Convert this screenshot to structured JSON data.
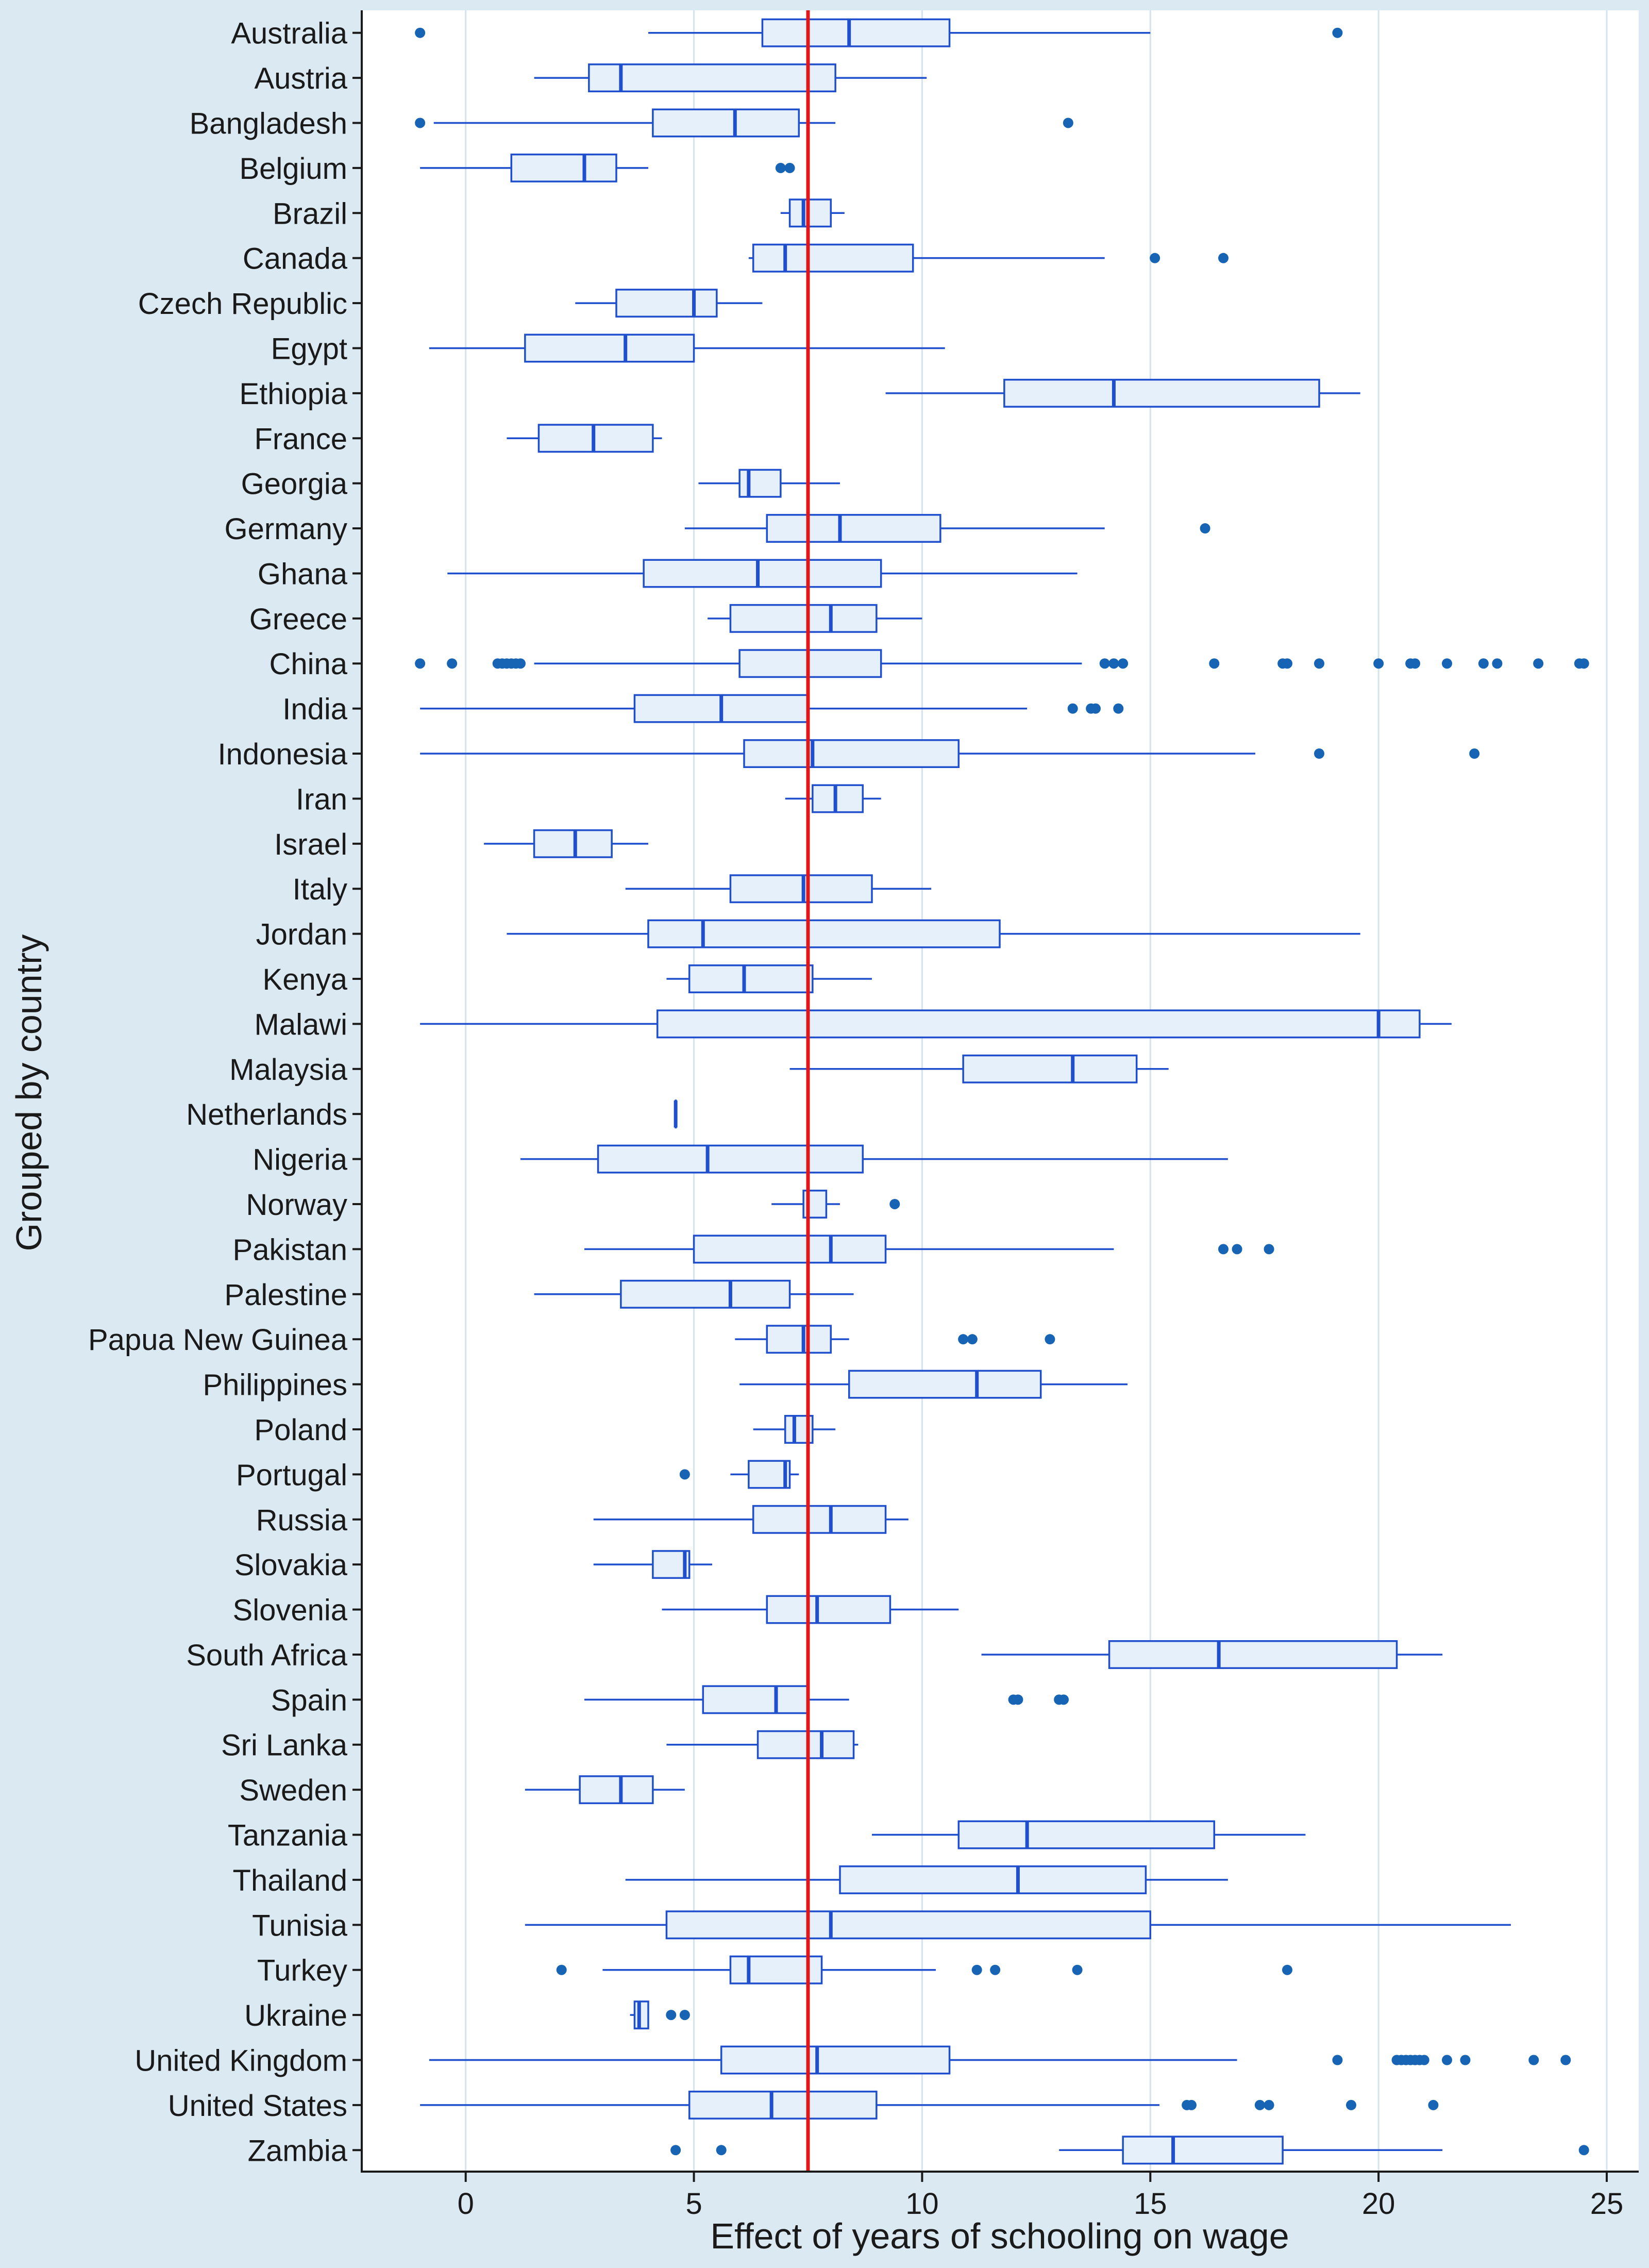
{
  "chart_data": {
    "type": "boxplot",
    "orientation": "horizontal",
    "xlabel": "Effect of years of schooling on wage",
    "ylabel": "Grouped by country",
    "xlim": [
      -2.3,
      25.7
    ],
    "x_ticks": [
      0,
      5,
      10,
      15,
      20,
      25
    ],
    "grid": "vertical",
    "reference_line": {
      "x": 7.5,
      "color": "#e0161b"
    },
    "colors": {
      "box_fill": "#e6f0fa",
      "box_stroke": "#1f4fcc",
      "outlier": "#1764b4",
      "background": "#dbeaf2",
      "plot_bg": "#ffffff",
      "grid": "#d3e3f0"
    },
    "categories": [
      "Australia",
      "Austria",
      "Bangladesh",
      "Belgium",
      "Brazil",
      "Canada",
      "Czech Republic",
      "Egypt",
      "Ethiopia",
      "France",
      "Georgia",
      "Germany",
      "Ghana",
      "Greece",
      "China",
      "India",
      "Indonesia",
      "Iran",
      "Israel",
      "Italy",
      "Jordan",
      "Kenya",
      "Malawi",
      "Malaysia",
      "Netherlands",
      "Nigeria",
      "Norway",
      "Pakistan",
      "Palestine",
      "Papua New Guinea",
      "Philippines",
      "Poland",
      "Portugal",
      "Russia",
      "Slovakia",
      "Slovenia",
      "South Africa",
      "Spain",
      "Sri Lanka",
      "Sweden",
      "Tanzania",
      "Thailand",
      "Tunisia",
      "Turkey",
      "Ukraine",
      "United Kingdom",
      "United States",
      "Zambia"
    ],
    "boxes": [
      {
        "min": 4.0,
        "q1": 6.5,
        "median": 8.4,
        "q3": 10.6,
        "max": 15.0,
        "outliers": [
          -1.0,
          19.1
        ]
      },
      {
        "min": 1.5,
        "q1": 2.7,
        "median": 3.4,
        "q3": 8.1,
        "max": 10.1,
        "outliers": []
      },
      {
        "min": -0.7,
        "q1": 4.1,
        "median": 5.9,
        "q3": 7.3,
        "max": 8.1,
        "outliers": [
          -1.0,
          13.2
        ]
      },
      {
        "min": -1.0,
        "q1": 1.0,
        "median": 2.6,
        "q3": 3.3,
        "max": 4.0,
        "outliers": [
          6.9,
          7.1
        ]
      },
      {
        "min": 6.9,
        "q1": 7.1,
        "median": 7.4,
        "q3": 8.0,
        "max": 8.3,
        "outliers": []
      },
      {
        "min": 6.2,
        "q1": 6.3,
        "median": 7.0,
        "q3": 9.8,
        "max": 14.0,
        "outliers": [
          15.1,
          16.6
        ]
      },
      {
        "min": 2.4,
        "q1": 3.3,
        "median": 5.0,
        "q3": 5.5,
        "max": 6.5,
        "outliers": []
      },
      {
        "min": -0.8,
        "q1": 1.3,
        "median": 3.5,
        "q3": 5.0,
        "max": 10.5,
        "outliers": []
      },
      {
        "min": 9.2,
        "q1": 11.8,
        "median": 14.2,
        "q3": 18.7,
        "max": 19.6,
        "outliers": []
      },
      {
        "min": 0.9,
        "q1": 1.6,
        "median": 2.8,
        "q3": 4.1,
        "max": 4.3,
        "outliers": []
      },
      {
        "min": 5.1,
        "q1": 6.0,
        "median": 6.2,
        "q3": 6.9,
        "max": 8.2,
        "outliers": []
      },
      {
        "min": 4.8,
        "q1": 6.6,
        "median": 8.2,
        "q3": 10.4,
        "max": 14.0,
        "outliers": [
          16.2
        ]
      },
      {
        "min": -0.4,
        "q1": 3.9,
        "median": 6.4,
        "q3": 9.1,
        "max": 13.4,
        "outliers": []
      },
      {
        "min": 5.3,
        "q1": 5.8,
        "median": 8.0,
        "q3": 9.0,
        "max": 10.0,
        "outliers": []
      },
      {
        "min": 1.5,
        "q1": 6.0,
        "median": 7.5,
        "q3": 9.1,
        "max": 13.5,
        "outliers": [
          -1.0,
          -0.3,
          0.7,
          0.8,
          0.9,
          1.0,
          1.1,
          1.2,
          14.0,
          14.2,
          14.4,
          16.4,
          17.9,
          18.0,
          18.7,
          20.0,
          20.7,
          20.8,
          21.5,
          22.3,
          22.6,
          23.5,
          24.4,
          24.5
        ]
      },
      {
        "min": -1.0,
        "q1": 3.7,
        "median": 5.6,
        "q3": 7.5,
        "max": 12.3,
        "outliers": [
          13.3,
          13.7,
          13.8,
          14.3
        ]
      },
      {
        "min": -1.0,
        "q1": 6.1,
        "median": 7.6,
        "q3": 10.8,
        "max": 17.3,
        "outliers": [
          18.7,
          22.1
        ]
      },
      {
        "min": 7.0,
        "q1": 7.6,
        "median": 8.1,
        "q3": 8.7,
        "max": 9.1,
        "outliers": []
      },
      {
        "min": 0.4,
        "q1": 1.5,
        "median": 2.4,
        "q3": 3.2,
        "max": 4.0,
        "outliers": []
      },
      {
        "min": 3.5,
        "q1": 5.8,
        "median": 7.4,
        "q3": 8.9,
        "max": 10.2,
        "outliers": []
      },
      {
        "min": 0.9,
        "q1": 4.0,
        "median": 5.2,
        "q3": 11.7,
        "max": 19.6,
        "outliers": []
      },
      {
        "min": 4.4,
        "q1": 4.9,
        "median": 6.1,
        "q3": 7.6,
        "max": 8.9,
        "outliers": []
      },
      {
        "min": -1.0,
        "q1": 4.2,
        "median": 20.0,
        "q3": 20.9,
        "max": 21.6,
        "outliers": []
      },
      {
        "min": 7.1,
        "q1": 10.9,
        "median": 13.3,
        "q3": 14.7,
        "max": 15.4,
        "outliers": []
      },
      {
        "min": 4.6,
        "q1": 4.6,
        "median": 4.6,
        "q3": 4.6,
        "max": 4.6,
        "outliers": []
      },
      {
        "min": 1.2,
        "q1": 2.9,
        "median": 5.3,
        "q3": 8.7,
        "max": 16.7,
        "outliers": []
      },
      {
        "min": 6.7,
        "q1": 7.4,
        "median": 7.5,
        "q3": 7.9,
        "max": 8.2,
        "outliers": [
          9.4
        ]
      },
      {
        "min": 2.6,
        "q1": 5.0,
        "median": 8.0,
        "q3": 9.2,
        "max": 14.2,
        "outliers": [
          16.6,
          16.9,
          17.6
        ]
      },
      {
        "min": 1.5,
        "q1": 3.4,
        "median": 5.8,
        "q3": 7.1,
        "max": 8.5,
        "outliers": []
      },
      {
        "min": 5.9,
        "q1": 6.6,
        "median": 7.4,
        "q3": 8.0,
        "max": 8.4,
        "outliers": [
          10.9,
          11.1,
          12.8
        ]
      },
      {
        "min": 6.0,
        "q1": 8.4,
        "median": 11.2,
        "q3": 12.6,
        "max": 14.5,
        "outliers": []
      },
      {
        "min": 6.3,
        "q1": 7.0,
        "median": 7.2,
        "q3": 7.6,
        "max": 8.1,
        "outliers": []
      },
      {
        "min": 5.8,
        "q1": 6.2,
        "median": 7.0,
        "q3": 7.1,
        "max": 7.3,
        "outliers": [
          4.8
        ]
      },
      {
        "min": 2.8,
        "q1": 6.3,
        "median": 8.0,
        "q3": 9.2,
        "max": 9.7,
        "outliers": []
      },
      {
        "min": 2.8,
        "q1": 4.1,
        "median": 4.8,
        "q3": 4.9,
        "max": 5.4,
        "outliers": []
      },
      {
        "min": 4.3,
        "q1": 6.6,
        "median": 7.7,
        "q3": 9.3,
        "max": 10.8,
        "outliers": []
      },
      {
        "min": 11.3,
        "q1": 14.1,
        "median": 16.5,
        "q3": 20.4,
        "max": 21.4,
        "outliers": []
      },
      {
        "min": 2.6,
        "q1": 5.2,
        "median": 6.8,
        "q3": 7.5,
        "max": 8.4,
        "outliers": [
          12.0,
          12.1,
          13.0,
          13.1
        ]
      },
      {
        "min": 4.4,
        "q1": 6.4,
        "median": 7.8,
        "q3": 8.5,
        "max": 8.6,
        "outliers": []
      },
      {
        "min": 1.3,
        "q1": 2.5,
        "median": 3.4,
        "q3": 4.1,
        "max": 4.8,
        "outliers": []
      },
      {
        "min": 8.9,
        "q1": 10.8,
        "median": 12.3,
        "q3": 16.4,
        "max": 18.4,
        "outliers": []
      },
      {
        "min": 3.5,
        "q1": 8.2,
        "median": 12.1,
        "q3": 14.9,
        "max": 16.7,
        "outliers": []
      },
      {
        "min": 1.3,
        "q1": 4.4,
        "median": 8.0,
        "q3": 15.0,
        "max": 22.9,
        "outliers": []
      },
      {
        "min": 3.0,
        "q1": 5.8,
        "median": 6.2,
        "q3": 7.8,
        "max": 10.3,
        "outliers": [
          2.1,
          11.2,
          11.6,
          13.4,
          18.0
        ]
      },
      {
        "min": 3.6,
        "q1": 3.7,
        "median": 3.8,
        "q3": 4.0,
        "max": 4.0,
        "outliers": [
          4.5,
          4.8
        ]
      },
      {
        "min": -0.8,
        "q1": 5.6,
        "median": 7.7,
        "q3": 10.6,
        "max": 16.9,
        "outliers": [
          19.1,
          20.4,
          20.5,
          20.6,
          20.7,
          20.8,
          20.9,
          21.0,
          21.5,
          21.9,
          23.4,
          24.1
        ]
      },
      {
        "min": -1.0,
        "q1": 4.9,
        "median": 6.7,
        "q3": 9.0,
        "max": 15.2,
        "outliers": [
          15.8,
          15.9,
          17.4,
          17.6,
          19.4,
          21.2
        ]
      },
      {
        "min": 13.0,
        "q1": 14.4,
        "median": 15.5,
        "q3": 17.9,
        "max": 21.4,
        "outliers": [
          4.6,
          5.6,
          24.5
        ]
      }
    ]
  }
}
